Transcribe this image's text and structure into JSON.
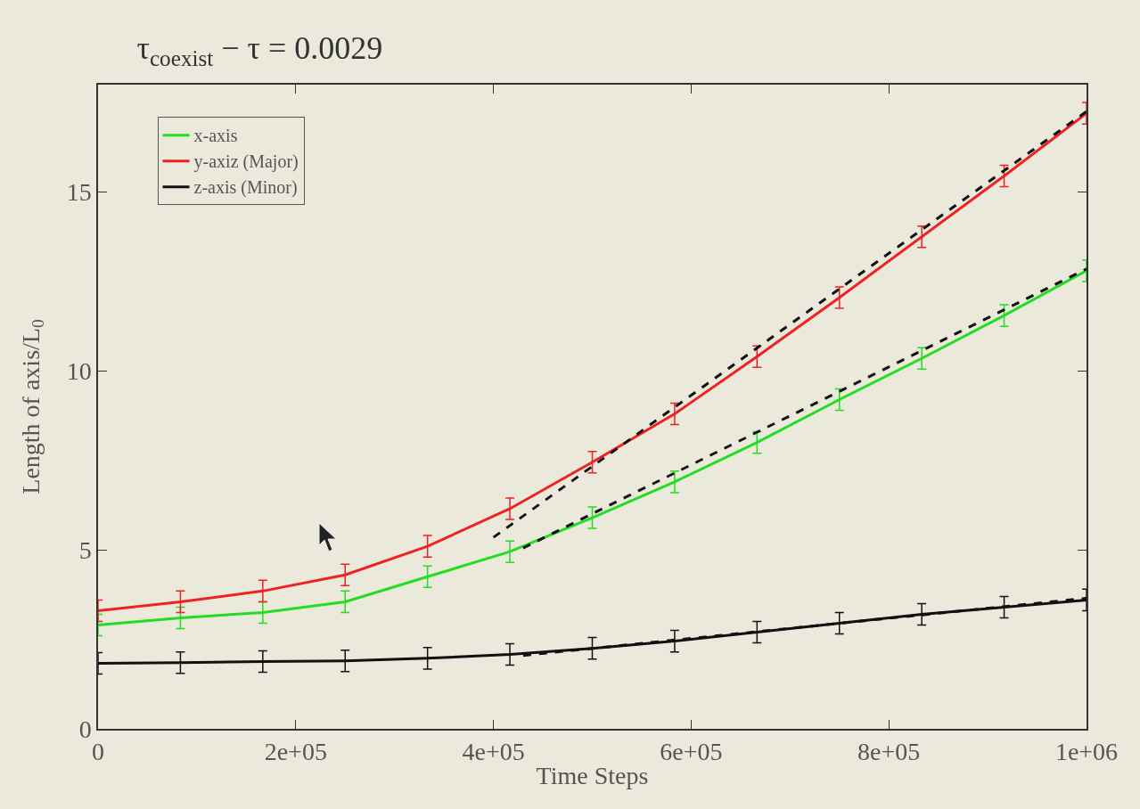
{
  "chart_data": {
    "type": "line",
    "title": "τ$_{coexist}$ − τ = 0.0029",
    "xlabel": "Time Steps",
    "ylabel": "Length of axis/L$_{0}$",
    "x": [
      0,
      83333,
      166667,
      250000,
      333333,
      416667,
      500000,
      583333,
      666667,
      750000,
      833333,
      916667,
      1000000
    ],
    "series": [
      {
        "name": "x-axis",
        "color": "#22dd22",
        "values": [
          2.9,
          3.1,
          3.25,
          3.55,
          4.25,
          4.95,
          5.9,
          6.9,
          8.0,
          9.2,
          10.35,
          11.55,
          12.8
        ],
        "errors": [
          0.3,
          0.3,
          0.3,
          0.3,
          0.3,
          0.3,
          0.3,
          0.3,
          0.3,
          0.3,
          0.3,
          0.3,
          0.3
        ]
      },
      {
        "name": "y-axiz (Major)",
        "color": "#ee2222",
        "values": [
          3.3,
          3.55,
          3.85,
          4.3,
          5.1,
          6.15,
          7.45,
          8.8,
          10.4,
          12.05,
          13.75,
          15.45,
          17.2
        ],
        "errors": [
          0.3,
          0.3,
          0.3,
          0.3,
          0.3,
          0.3,
          0.3,
          0.3,
          0.3,
          0.3,
          0.3,
          0.3,
          0.3
        ]
      },
      {
        "name": "z-axis (Minor)",
        "color": "#111111",
        "values": [
          1.83,
          1.85,
          1.88,
          1.9,
          1.97,
          2.08,
          2.25,
          2.45,
          2.7,
          2.95,
          3.2,
          3.4,
          3.6
        ],
        "errors": [
          0.3,
          0.3,
          0.3,
          0.3,
          0.3,
          0.3,
          0.3,
          0.3,
          0.3,
          0.3,
          0.3,
          0.3,
          0.3
        ]
      },
      {
        "color": "#111111",
        "line_style": "dashed",
        "x": [
          400000,
          1000000
        ],
        "values": [
          5.35,
          17.25
        ]
      },
      {
        "color": "#111111",
        "line_style": "dashed",
        "x": [
          430000,
          1000000
        ],
        "values": [
          5.05,
          12.85
        ]
      },
      {
        "color": "#111111",
        "line_style": "dashed",
        "x": [
          430000,
          1000000
        ],
        "values": [
          2.05,
          3.65
        ]
      }
    ],
    "xlim": [
      0,
      1000000
    ],
    "xticks": [
      0,
      {
        "value": 200000,
        "label": "2e+05"
      },
      {
        "value": 400000,
        "label": "4e+05"
      },
      {
        "value": 600000,
        "label": "6e+05"
      },
      {
        "value": 800000,
        "label": "8e+05"
      },
      {
        "value": 1000000,
        "label": "1e+06"
      }
    ],
    "ylim": [
      0,
      18
    ],
    "yticks": [
      0,
      5,
      10,
      15
    ],
    "grid": false,
    "legend": "top left",
    "marker": "none",
    "line_style": "solid"
  }
}
